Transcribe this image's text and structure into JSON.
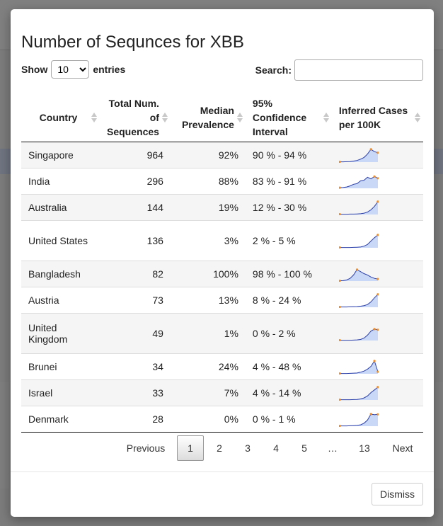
{
  "modal": {
    "title": "Number of Sequnces for XBB",
    "length": {
      "show_label": "Show",
      "selected": "10",
      "options": [
        "10"
      ],
      "suffix": "entries"
    },
    "search": {
      "label": "Search:",
      "value": ""
    },
    "columns": [
      {
        "key": "country",
        "label": "Country"
      },
      {
        "key": "total",
        "label": "Total Num. of Sequences"
      },
      {
        "key": "median",
        "label": "Median Prevalence"
      },
      {
        "key": "ci",
        "label": "95% Confidence Interval"
      },
      {
        "key": "inferred",
        "label": "Inferred Cases per 100K"
      }
    ],
    "rows": [
      {
        "country": "Singapore",
        "total": "964",
        "median": "92%",
        "ci": "90 % - 94 %",
        "spark": [
          0.02,
          0.02,
          0.03,
          0.04,
          0.08,
          0.12,
          0.22,
          0.35,
          0.6,
          0.95,
          0.78,
          0.7
        ]
      },
      {
        "country": "India",
        "total": "296",
        "median": "88%",
        "ci": "83 % - 91 %",
        "spark": [
          0.05,
          0.06,
          0.1,
          0.18,
          0.3,
          0.35,
          0.55,
          0.6,
          0.82,
          0.7,
          0.88,
          0.75
        ]
      },
      {
        "country": "Australia",
        "total": "144",
        "median": "19%",
        "ci": "12 % - 30 %",
        "spark": [
          0.02,
          0.02,
          0.02,
          0.03,
          0.03,
          0.04,
          0.06,
          0.1,
          0.18,
          0.35,
          0.6,
          0.95
        ]
      },
      {
        "country": "United States",
        "total": "136",
        "median": "3%",
        "ci": "2 % - 5 %",
        "spark": [
          0.02,
          0.02,
          0.02,
          0.02,
          0.03,
          0.04,
          0.06,
          0.12,
          0.25,
          0.5,
          0.75,
          0.95
        ]
      },
      {
        "country": "Bangladesh",
        "total": "82",
        "median": "100%",
        "ci": "98 % - 100 %",
        "spark": [
          0.02,
          0.03,
          0.08,
          0.2,
          0.45,
          0.85,
          0.7,
          0.55,
          0.45,
          0.3,
          0.2,
          0.15
        ]
      },
      {
        "country": "Austria",
        "total": "73",
        "median": "13%",
        "ci": "8 % - 24 %",
        "spark": [
          0.02,
          0.02,
          0.02,
          0.03,
          0.04,
          0.05,
          0.08,
          0.12,
          0.2,
          0.4,
          0.7,
          0.95
        ]
      },
      {
        "country": "United Kingdom",
        "total": "49",
        "median": "1%",
        "ci": "0 % - 2 %",
        "spark": [
          0.02,
          0.02,
          0.02,
          0.02,
          0.03,
          0.05,
          0.08,
          0.18,
          0.4,
          0.7,
          0.85,
          0.8
        ]
      },
      {
        "country": "Brunei",
        "total": "34",
        "median": "24%",
        "ci": "4 % - 48 %",
        "spark": [
          0.02,
          0.02,
          0.02,
          0.03,
          0.05,
          0.06,
          0.12,
          0.2,
          0.35,
          0.55,
          0.95,
          0.15
        ]
      },
      {
        "country": "Israel",
        "total": "33",
        "median": "7%",
        "ci": "4 % - 14 %",
        "spark": [
          0.02,
          0.02,
          0.02,
          0.02,
          0.03,
          0.04,
          0.08,
          0.15,
          0.3,
          0.55,
          0.75,
          0.95
        ]
      },
      {
        "country": "Denmark",
        "total": "28",
        "median": "0%",
        "ci": "0 % - 1 %",
        "spark": [
          0.02,
          0.02,
          0.02,
          0.03,
          0.04,
          0.06,
          0.1,
          0.22,
          0.45,
          0.9,
          0.85,
          0.88
        ]
      }
    ],
    "pagination": {
      "previous": "Previous",
      "next": "Next",
      "ellipsis": "…",
      "pages": [
        "1",
        "2",
        "3",
        "4",
        "5",
        "13"
      ],
      "current": "1"
    },
    "dismiss_label": "Dismiss"
  },
  "colors": {
    "spark_line": "#2b3fa8",
    "spark_fill": "#c9d8f7",
    "spark_marker": "#f28c28"
  }
}
